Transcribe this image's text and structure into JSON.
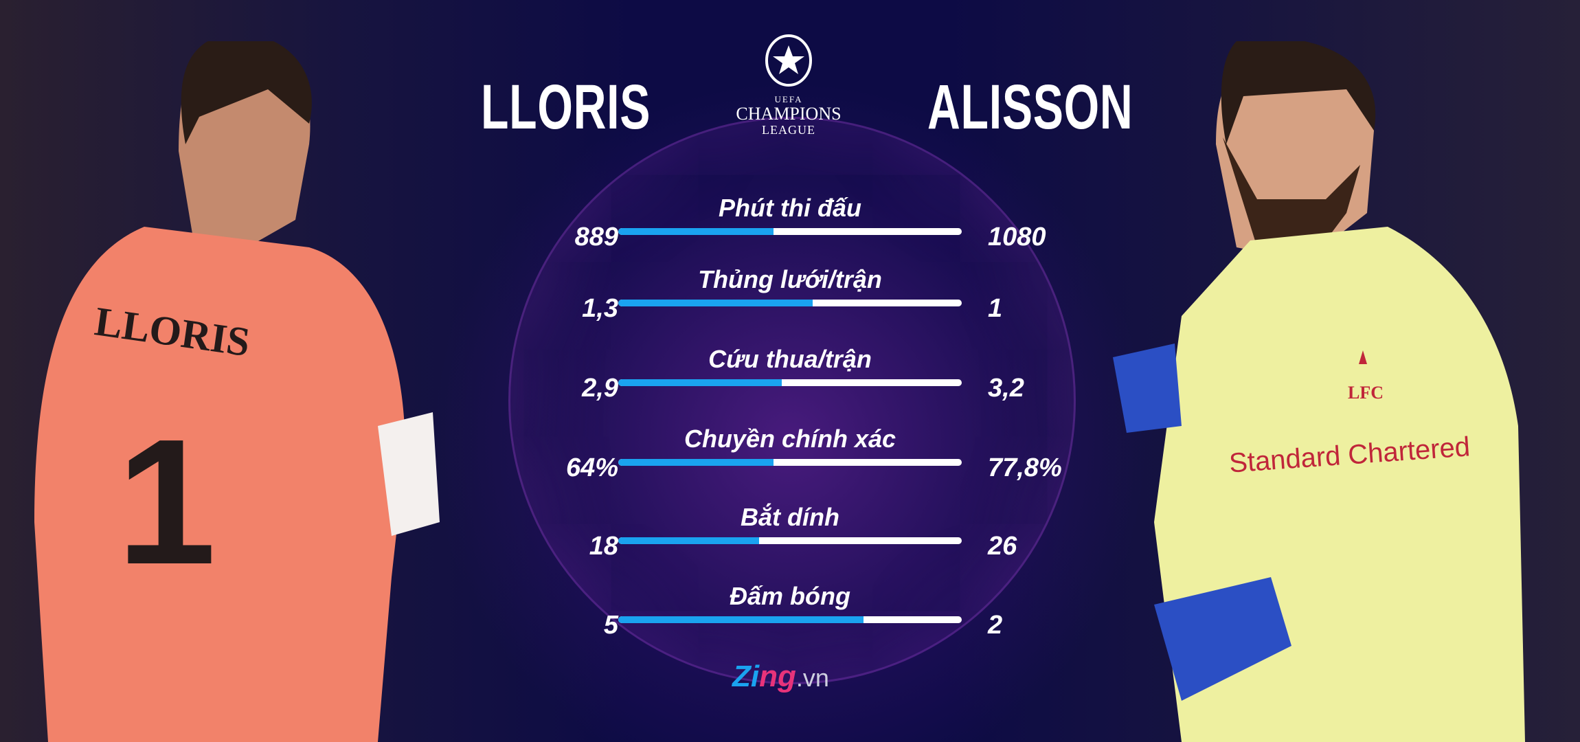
{
  "players": {
    "left": {
      "name": "LLORIS",
      "jersey_text": "LLORIS",
      "jersey_number": "1",
      "jersey_color": "#f2826a"
    },
    "right": {
      "name": "ALISSON",
      "jersey_sponsor": "Standard Chartered",
      "jersey_club": "LFC",
      "jersey_color": "#eef0a0"
    }
  },
  "logo": {
    "line1": "UEFA",
    "line2": "CHAMPIONS",
    "line3": "LEAGUE"
  },
  "colors": {
    "bar_fill": "#1aa3f0",
    "bar_track": "#ffffff",
    "background": "#0c0a3c"
  },
  "stats": [
    {
      "label": "Phút thi đấu",
      "left": "889",
      "right": "1080",
      "left_share": 0.452
    },
    {
      "label": "Thủng lưới/trận",
      "left": "1,3",
      "right": "1",
      "left_share": 0.565
    },
    {
      "label": "Cứu thua/trận",
      "left": "2,9",
      "right": "3,2",
      "left_share": 0.475
    },
    {
      "label": "Chuyền chính xác",
      "left": "64%",
      "right": "77,8%",
      "left_share": 0.451
    },
    {
      "label": "Bắt dính",
      "left": "18",
      "right": "26",
      "left_share": 0.409
    },
    {
      "label": "Đấm bóng",
      "left": "5",
      "right": "2",
      "left_share": 0.714
    }
  ],
  "brand": {
    "part1": "Zi",
    "part2": "ng",
    "suffix": ".vn"
  }
}
